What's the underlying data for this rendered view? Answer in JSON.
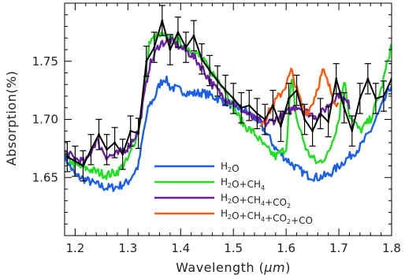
{
  "chart_data": {
    "type": "line",
    "xlabel_prefix": "Wavelength (",
    "xlabel_unit": "μm",
    "xlabel_suffix": ")",
    "ylabel": "Absorption(%)",
    "xlim": [
      1.18,
      1.8
    ],
    "ylim": [
      1.6,
      1.8
    ],
    "x_ticks": [
      1.2,
      1.3,
      1.4,
      1.5,
      1.6,
      1.7,
      1.8
    ],
    "x_tick_labels": [
      "1.2",
      "1.3",
      "1.4",
      "1.5",
      "1.6",
      "1.7",
      "1.8"
    ],
    "y_ticks": [
      1.65,
      1.7,
      1.75
    ],
    "y_tick_labels": [
      "1.65",
      "1.70",
      "1.75"
    ],
    "grid": false,
    "legend_position": "bottom-center",
    "series": [
      {
        "name": "H2O",
        "color": "#1a5fe8",
        "x": [
          1.18,
          1.2,
          1.22,
          1.24,
          1.26,
          1.28,
          1.3,
          1.32,
          1.33,
          1.34,
          1.35,
          1.36,
          1.37,
          1.38,
          1.4,
          1.42,
          1.44,
          1.46,
          1.48,
          1.5,
          1.52,
          1.54,
          1.56,
          1.58,
          1.6,
          1.62,
          1.64,
          1.66,
          1.68,
          1.7,
          1.72,
          1.74,
          1.76,
          1.78,
          1.8
        ],
        "y": [
          1.668,
          1.652,
          1.648,
          1.644,
          1.641,
          1.642,
          1.646,
          1.66,
          1.69,
          1.712,
          1.718,
          1.73,
          1.736,
          1.728,
          1.725,
          1.722,
          1.723,
          1.72,
          1.716,
          1.712,
          1.708,
          1.702,
          1.69,
          1.675,
          1.666,
          1.658,
          1.652,
          1.65,
          1.652,
          1.66,
          1.668,
          1.676,
          1.69,
          1.71,
          1.73
        ]
      },
      {
        "name": "H2O+CH4",
        "color": "#22dd22",
        "x": [
          1.18,
          1.2,
          1.22,
          1.24,
          1.26,
          1.28,
          1.3,
          1.32,
          1.33,
          1.34,
          1.35,
          1.36,
          1.38,
          1.4,
          1.42,
          1.44,
          1.46,
          1.48,
          1.5,
          1.52,
          1.54,
          1.56,
          1.58,
          1.6,
          1.61,
          1.62,
          1.64,
          1.66,
          1.68,
          1.7,
          1.71,
          1.72,
          1.74,
          1.76,
          1.78,
          1.8
        ],
        "y": [
          1.67,
          1.66,
          1.658,
          1.655,
          1.652,
          1.655,
          1.665,
          1.69,
          1.72,
          1.765,
          1.77,
          1.772,
          1.77,
          1.766,
          1.76,
          1.752,
          1.74,
          1.73,
          1.71,
          1.695,
          1.688,
          1.676,
          1.668,
          1.675,
          1.735,
          1.7,
          1.672,
          1.662,
          1.67,
          1.7,
          1.735,
          1.704,
          1.69,
          1.7,
          1.725,
          1.765
        ]
      },
      {
        "name": "H2O+CH4+CO2",
        "color": "#6a1fa0",
        "x": [
          1.18,
          1.2,
          1.22,
          1.24,
          1.26,
          1.28,
          1.3,
          1.32,
          1.34,
          1.36,
          1.38,
          1.4,
          1.42,
          1.44,
          1.46,
          1.48,
          1.5,
          1.52,
          1.54,
          1.56,
          1.58,
          1.6,
          1.62,
          1.64,
          1.66,
          1.68,
          1.7,
          1.72
        ],
        "y": [
          1.672,
          1.666,
          1.663,
          1.682,
          1.668,
          1.67,
          1.676,
          1.69,
          1.745,
          1.765,
          1.768,
          1.762,
          1.756,
          1.745,
          1.73,
          1.72,
          1.714,
          1.707,
          1.7,
          1.696,
          1.7,
          1.705,
          1.712,
          1.706,
          1.702,
          1.712,
          1.722,
          1.712
        ]
      },
      {
        "name": "H2O+CH4+CO2+CO",
        "color": "#ff5a10",
        "x": [
          1.55,
          1.56,
          1.57,
          1.58,
          1.59,
          1.6,
          1.61,
          1.62,
          1.63,
          1.64,
          1.65,
          1.66,
          1.67,
          1.68,
          1.69,
          1.7
        ],
        "y": [
          1.696,
          1.7,
          1.708,
          1.716,
          1.722,
          1.73,
          1.742,
          1.726,
          1.712,
          1.706,
          1.714,
          1.728,
          1.742,
          1.73,
          1.718,
          1.712
        ]
      }
    ],
    "observed": {
      "name": "data",
      "color": "#000000",
      "x": [
        1.185,
        1.2,
        1.215,
        1.23,
        1.245,
        1.26,
        1.275,
        1.29,
        1.305,
        1.32,
        1.335,
        1.35,
        1.365,
        1.38,
        1.395,
        1.41,
        1.425,
        1.44,
        1.455,
        1.47,
        1.485,
        1.5,
        1.515,
        1.53,
        1.545,
        1.56,
        1.575,
        1.59,
        1.605,
        1.62,
        1.635,
        1.65,
        1.665,
        1.68,
        1.695,
        1.71,
        1.725,
        1.74,
        1.755,
        1.77,
        1.785,
        1.8
      ],
      "y": [
        1.668,
        1.664,
        1.66,
        1.674,
        1.687,
        1.674,
        1.68,
        1.67,
        1.69,
        1.688,
        1.75,
        1.762,
        1.785,
        1.76,
        1.775,
        1.762,
        1.772,
        1.752,
        1.742,
        1.733,
        1.725,
        1.718,
        1.71,
        1.712,
        1.705,
        1.7,
        1.712,
        1.694,
        1.718,
        1.725,
        1.7,
        1.69,
        1.705,
        1.698,
        1.735,
        1.71,
        1.69,
        1.718,
        1.735,
        1.718,
        1.72,
        1.735
      ],
      "err": 0.013
    }
  }
}
